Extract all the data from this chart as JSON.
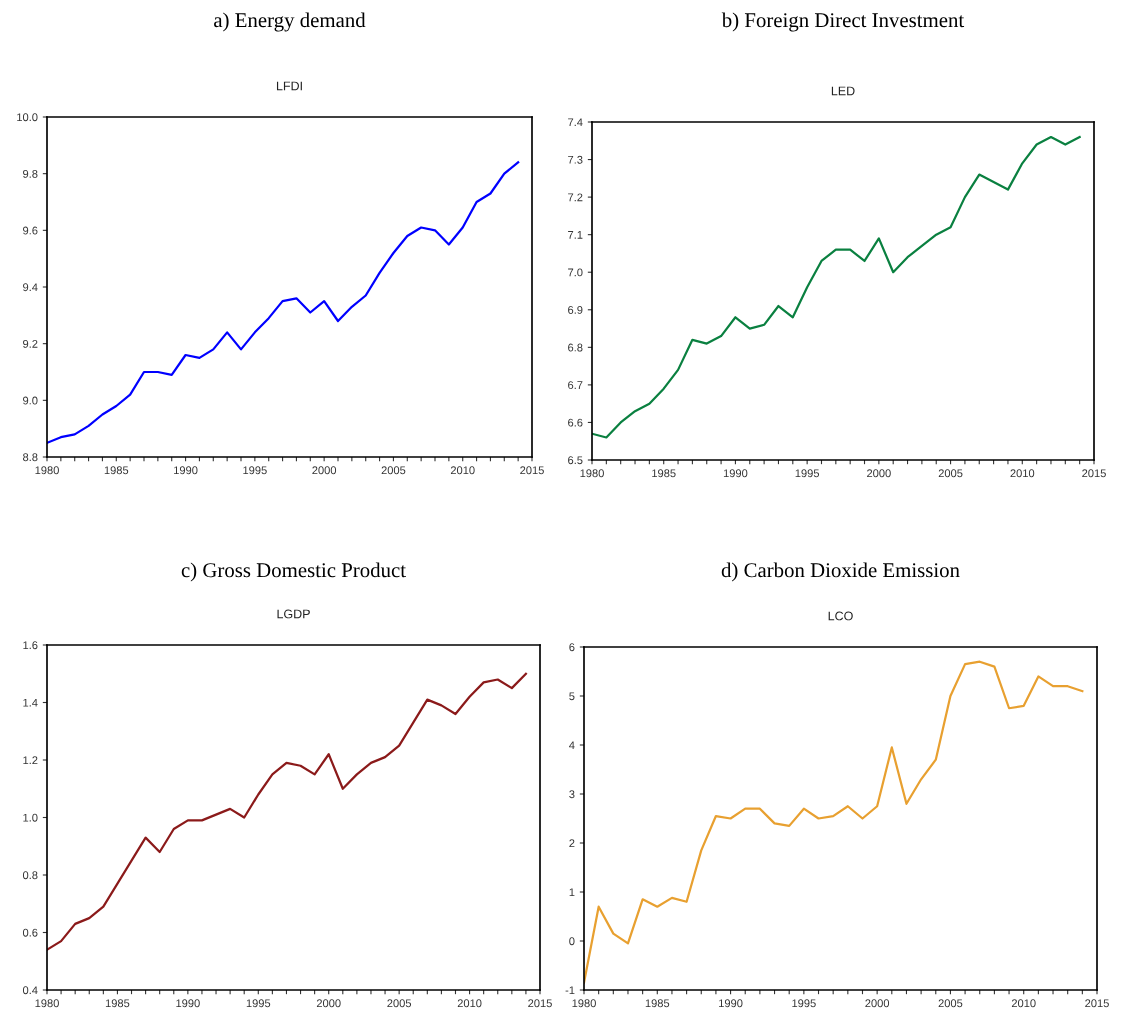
{
  "chart_data": [
    {
      "type": "line",
      "title": "a) Energy demand",
      "subtitle": "LFDI",
      "x": [
        1980,
        1981,
        1982,
        1983,
        1984,
        1985,
        1986,
        1987,
        1988,
        1989,
        1990,
        1991,
        1992,
        1993,
        1994,
        1995,
        1996,
        1997,
        1998,
        1999,
        2000,
        2001,
        2002,
        2003,
        2004,
        2005,
        2006,
        2007,
        2008,
        2009,
        2010,
        2011,
        2012,
        2013,
        2014
      ],
      "series": [
        {
          "color": "#0000ff",
          "values": [
            8.85,
            8.87,
            8.88,
            8.91,
            8.95,
            8.98,
            9.02,
            9.1,
            9.1,
            9.09,
            9.16,
            9.15,
            9.18,
            9.24,
            9.18,
            9.24,
            9.29,
            9.35,
            9.36,
            9.31,
            9.35,
            9.28,
            9.33,
            9.37,
            9.45,
            9.52,
            9.58,
            9.61,
            9.6,
            9.55,
            9.61,
            9.7,
            9.73,
            9.8,
            9.84
          ]
        }
      ],
      "xlim": [
        1980,
        2015
      ],
      "xticks": [
        1980,
        {
          "value": 1981,
          "label": null
        },
        {
          "value": 1982,
          "label": null
        },
        {
          "value": 1983,
          "label": null
        },
        {
          "value": 1984,
          "label": null
        },
        1985,
        {
          "value": 1986,
          "label": null
        },
        {
          "value": 1987,
          "label": null
        },
        {
          "value": 1988,
          "label": null
        },
        {
          "value": 1989,
          "label": null
        },
        1990,
        {
          "value": 1991,
          "label": null
        },
        {
          "value": 1992,
          "label": null
        },
        {
          "value": 1993,
          "label": null
        },
        {
          "value": 1994,
          "label": null
        },
        1995,
        {
          "value": 1996,
          "label": null
        },
        {
          "value": 1997,
          "label": null
        },
        {
          "value": 1998,
          "label": null
        },
        {
          "value": 1999,
          "label": null
        },
        2000,
        {
          "value": 2001,
          "label": null
        },
        {
          "value": 2002,
          "label": null
        },
        {
          "value": 2003,
          "label": null
        },
        {
          "value": 2004,
          "label": null
        },
        2005,
        {
          "value": 2006,
          "label": null
        },
        {
          "value": 2007,
          "label": null
        },
        {
          "value": 2008,
          "label": null
        },
        {
          "value": 2009,
          "label": null
        },
        2010,
        {
          "value": 2011,
          "label": null
        },
        {
          "value": 2012,
          "label": null
        },
        {
          "value": 2013,
          "label": null
        },
        {
          "value": 2014,
          "label": null
        },
        2015
      ],
      "ylim": [
        8.8,
        10.0
      ],
      "yticks": [
        8.8,
        {
          "value": 9,
          "label": "9.0"
        },
        9.2,
        9.4,
        9.6,
        9.8,
        {
          "value": 10,
          "label": "10.0"
        }
      ]
    },
    {
      "type": "line",
      "title": "b) Foreign Direct Investment",
      "subtitle": "LED",
      "x": [
        1980,
        1981,
        1982,
        1983,
        1984,
        1985,
        1986,
        1987,
        1988,
        1989,
        1990,
        1991,
        1992,
        1993,
        1994,
        1995,
        1996,
        1997,
        1998,
        1999,
        2000,
        2001,
        2002,
        2003,
        2004,
        2005,
        2006,
        2007,
        2008,
        2009,
        2010,
        2011,
        2012,
        2013,
        2014
      ],
      "series": [
        {
          "color": "#0a8040",
          "values": [
            6.57,
            6.56,
            6.6,
            6.63,
            6.65,
            6.69,
            6.74,
            6.82,
            6.81,
            6.83,
            6.88,
            6.85,
            6.86,
            6.91,
            6.88,
            6.96,
            7.03,
            7.06,
            7.06,
            7.03,
            7.09,
            7.0,
            7.04,
            7.07,
            7.1,
            7.12,
            7.2,
            7.26,
            7.24,
            7.22,
            7.29,
            7.34,
            7.36,
            7.34,
            7.36
          ]
        }
      ],
      "xlim": [
        1980,
        2015
      ],
      "xticks": [
        1980,
        {
          "value": 1981,
          "label": null
        },
        {
          "value": 1982,
          "label": null
        },
        {
          "value": 1983,
          "label": null
        },
        {
          "value": 1984,
          "label": null
        },
        1985,
        {
          "value": 1986,
          "label": null
        },
        {
          "value": 1987,
          "label": null
        },
        {
          "value": 1988,
          "label": null
        },
        {
          "value": 1989,
          "label": null
        },
        1990,
        {
          "value": 1991,
          "label": null
        },
        {
          "value": 1992,
          "label": null
        },
        {
          "value": 1993,
          "label": null
        },
        {
          "value": 1994,
          "label": null
        },
        1995,
        {
          "value": 1996,
          "label": null
        },
        {
          "value": 1997,
          "label": null
        },
        {
          "value": 1998,
          "label": null
        },
        {
          "value": 1999,
          "label": null
        },
        2000,
        {
          "value": 2001,
          "label": null
        },
        {
          "value": 2002,
          "label": null
        },
        {
          "value": 2003,
          "label": null
        },
        {
          "value": 2004,
          "label": null
        },
        2005,
        {
          "value": 2006,
          "label": null
        },
        {
          "value": 2007,
          "label": null
        },
        {
          "value": 2008,
          "label": null
        },
        {
          "value": 2009,
          "label": null
        },
        2010,
        {
          "value": 2011,
          "label": null
        },
        {
          "value": 2012,
          "label": null
        },
        {
          "value": 2013,
          "label": null
        },
        {
          "value": 2014,
          "label": null
        },
        2015
      ],
      "ylim": [
        6.5,
        7.4
      ],
      "yticks": [
        6.5,
        6.6,
        6.7,
        6.8,
        6.9,
        {
          "value": 7,
          "label": "7.0"
        },
        7.1,
        7.2,
        7.3,
        7.4
      ]
    },
    {
      "type": "line",
      "title": "c) Gross Domestic Product",
      "subtitle": "LGDP",
      "x": [
        1980,
        1981,
        1982,
        1983,
        1984,
        1985,
        1986,
        1987,
        1988,
        1989,
        1990,
        1991,
        1992,
        1993,
        1994,
        1995,
        1996,
        1997,
        1998,
        1999,
        2000,
        2001,
        2002,
        2003,
        2004,
        2005,
        2006,
        2007,
        2008,
        2009,
        2010,
        2011,
        2012,
        2013,
        2014
      ],
      "series": [
        {
          "color": "#8b1a1a",
          "values": [
            0.54,
            0.57,
            0.63,
            0.65,
            0.69,
            0.77,
            0.85,
            0.93,
            0.88,
            0.96,
            0.99,
            0.99,
            1.01,
            1.03,
            1.0,
            1.08,
            1.15,
            1.19,
            1.18,
            1.15,
            1.22,
            1.1,
            1.15,
            1.19,
            1.21,
            1.25,
            1.33,
            1.41,
            1.39,
            1.36,
            1.42,
            1.47,
            1.48,
            1.45,
            1.5
          ]
        }
      ],
      "xlim": [
        1980,
        2015
      ],
      "xticks": [
        1980,
        {
          "value": 1981,
          "label": null
        },
        {
          "value": 1982,
          "label": null
        },
        {
          "value": 1983,
          "label": null
        },
        {
          "value": 1984,
          "label": null
        },
        1985,
        {
          "value": 1986,
          "label": null
        },
        {
          "value": 1987,
          "label": null
        },
        {
          "value": 1988,
          "label": null
        },
        {
          "value": 1989,
          "label": null
        },
        1990,
        {
          "value": 1991,
          "label": null
        },
        {
          "value": 1992,
          "label": null
        },
        {
          "value": 1993,
          "label": null
        },
        {
          "value": 1994,
          "label": null
        },
        1995,
        {
          "value": 1996,
          "label": null
        },
        {
          "value": 1997,
          "label": null
        },
        {
          "value": 1998,
          "label": null
        },
        {
          "value": 1999,
          "label": null
        },
        2000,
        {
          "value": 2001,
          "label": null
        },
        {
          "value": 2002,
          "label": null
        },
        {
          "value": 2003,
          "label": null
        },
        {
          "value": 2004,
          "label": null
        },
        2005,
        {
          "value": 2006,
          "label": null
        },
        {
          "value": 2007,
          "label": null
        },
        {
          "value": 2008,
          "label": null
        },
        {
          "value": 2009,
          "label": null
        },
        2010,
        {
          "value": 2011,
          "label": null
        },
        {
          "value": 2012,
          "label": null
        },
        {
          "value": 2013,
          "label": null
        },
        {
          "value": 2014,
          "label": null
        },
        2015
      ],
      "ylim": [
        0.4,
        1.6
      ],
      "yticks": [
        0.4,
        0.6,
        0.8,
        {
          "value": 1,
          "label": "1.0"
        },
        1.2,
        1.4,
        1.6
      ]
    },
    {
      "type": "line",
      "title": "d) Carbon Dioxide Emission",
      "subtitle": "LCO",
      "x": [
        1980,
        1981,
        1982,
        1983,
        1984,
        1985,
        1986,
        1987,
        1988,
        1989,
        1990,
        1991,
        1992,
        1993,
        1994,
        1995,
        1996,
        1997,
        1998,
        1999,
        2000,
        2001,
        2002,
        2003,
        2004,
        2005,
        2006,
        2007,
        2008,
        2009,
        2010,
        2011,
        2012,
        2013,
        2014
      ],
      "series": [
        {
          "color": "#e8a030",
          "values": [
            -0.85,
            0.7,
            0.15,
            -0.05,
            0.85,
            0.7,
            0.88,
            0.8,
            1.85,
            2.55,
            2.5,
            2.7,
            2.7,
            2.4,
            2.35,
            2.7,
            2.5,
            2.55,
            2.75,
            2.5,
            2.75,
            3.95,
            2.8,
            3.3,
            3.7,
            5.0,
            5.65,
            5.7,
            5.6,
            4.75,
            4.8,
            5.4,
            5.2,
            5.2,
            5.1
          ]
        }
      ],
      "xlim": [
        1980,
        2015
      ],
      "xticks": [
        1980,
        {
          "value": 1981,
          "label": null
        },
        {
          "value": 1982,
          "label": null
        },
        {
          "value": 1983,
          "label": null
        },
        {
          "value": 1984,
          "label": null
        },
        1985,
        {
          "value": 1986,
          "label": null
        },
        {
          "value": 1987,
          "label": null
        },
        {
          "value": 1988,
          "label": null
        },
        {
          "value": 1989,
          "label": null
        },
        1990,
        {
          "value": 1991,
          "label": null
        },
        {
          "value": 1992,
          "label": null
        },
        {
          "value": 1993,
          "label": null
        },
        {
          "value": 1994,
          "label": null
        },
        1995,
        {
          "value": 1996,
          "label": null
        },
        {
          "value": 1997,
          "label": null
        },
        {
          "value": 1998,
          "label": null
        },
        {
          "value": 1999,
          "label": null
        },
        2000,
        {
          "value": 2001,
          "label": null
        },
        {
          "value": 2002,
          "label": null
        },
        {
          "value": 2003,
          "label": null
        },
        {
          "value": 2004,
          "label": null
        },
        2005,
        {
          "value": 2006,
          "label": null
        },
        {
          "value": 2007,
          "label": null
        },
        {
          "value": 2008,
          "label": null
        },
        {
          "value": 2009,
          "label": null
        },
        2010,
        {
          "value": 2011,
          "label": null
        },
        {
          "value": 2012,
          "label": null
        },
        {
          "value": 2013,
          "label": null
        },
        {
          "value": 2014,
          "label": null
        },
        2015
      ],
      "ylim": [
        -1,
        6
      ],
      "yticks": [
        -1,
        0,
        1,
        2,
        3,
        4,
        5,
        6
      ]
    }
  ]
}
